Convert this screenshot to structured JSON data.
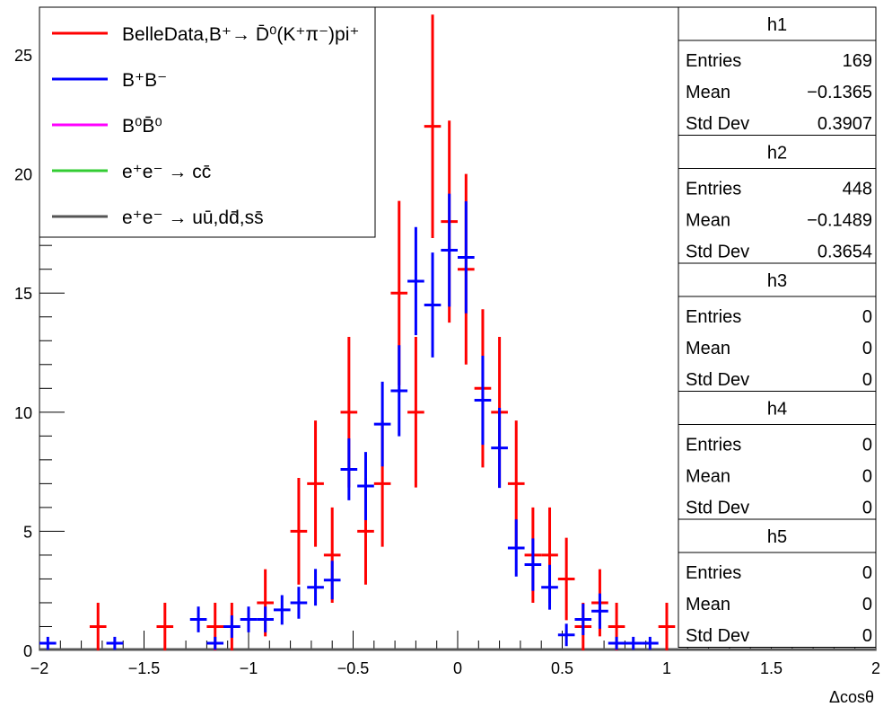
{
  "chart_data": {
    "type": "scatter",
    "xlabel": "Δcosθ",
    "ylabel": "",
    "xlim": [
      -2,
      2
    ],
    "ylim": [
      0,
      27
    ],
    "grid": false,
    "legend_placement": "top-left",
    "x_tick_labels": [
      "−2",
      "−1.5",
      "−1",
      "−0.5",
      "0",
      "0.5",
      "1",
      "1.5",
      "2"
    ],
    "x_ticks": [
      -2,
      -1.5,
      -1,
      -0.5,
      0,
      0.5,
      1,
      1.5,
      2
    ],
    "y_tick_labels": [
      "0",
      "5",
      "10",
      "15",
      "20",
      "25"
    ],
    "y_ticks": [
      0,
      5,
      10,
      15,
      20,
      25
    ],
    "bin_half_width": 0.04,
    "legend": [
      {
        "label": "BelleData,B⁺→ D̄⁰(K⁺π⁻)pi⁺",
        "color": "#ff0000"
      },
      {
        "label": "B⁺B⁻",
        "color": "#0000ff"
      },
      {
        "label": "B⁰B̄⁰",
        "color": "#ff00ff"
      },
      {
        "label": "e⁺e⁻ → cc̄",
        "color": "#33cc33"
      },
      {
        "label": "e⁺e⁻ → uū,dd̄,ss̄",
        "color": "#555555"
      }
    ],
    "series": [
      {
        "name": "BelleData,B⁺→ D̄⁰(K⁺π⁻)pi⁺",
        "color": "#ff0000",
        "points": [
          {
            "x": -1.72,
            "y": 1,
            "err": 1
          },
          {
            "x": -1.4,
            "y": 1,
            "err": 1
          },
          {
            "x": -1.16,
            "y": 1,
            "err": 1
          },
          {
            "x": -1.08,
            "y": 1,
            "err": 1
          },
          {
            "x": -0.92,
            "y": 2,
            "err": 1.41
          },
          {
            "x": -0.76,
            "y": 5,
            "err": 2.24
          },
          {
            "x": -0.68,
            "y": 7,
            "err": 2.65
          },
          {
            "x": -0.6,
            "y": 4,
            "err": 2
          },
          {
            "x": -0.52,
            "y": 10,
            "err": 3.16
          },
          {
            "x": -0.44,
            "y": 5,
            "err": 2.24
          },
          {
            "x": -0.36,
            "y": 7,
            "err": 2.65
          },
          {
            "x": -0.28,
            "y": 15,
            "err": 3.87
          },
          {
            "x": -0.2,
            "y": 10,
            "err": 3.16
          },
          {
            "x": -0.12,
            "y": 22,
            "err": 4.69
          },
          {
            "x": -0.04,
            "y": 18,
            "err": 4.24
          },
          {
            "x": 0.04,
            "y": 16,
            "err": 4
          },
          {
            "x": 0.12,
            "y": 11,
            "err": 3.32
          },
          {
            "x": 0.2,
            "y": 10,
            "err": 3.16
          },
          {
            "x": 0.28,
            "y": 7,
            "err": 2.65
          },
          {
            "x": 0.36,
            "y": 4,
            "err": 2
          },
          {
            "x": 0.44,
            "y": 4,
            "err": 2
          },
          {
            "x": 0.52,
            "y": 3,
            "err": 1.73
          },
          {
            "x": 0.6,
            "y": 1,
            "err": 1
          },
          {
            "x": 0.68,
            "y": 2,
            "err": 1.41
          },
          {
            "x": 0.76,
            "y": 1,
            "err": 1
          },
          {
            "x": 1.0,
            "y": 1,
            "err": 1
          }
        ]
      },
      {
        "name": "B⁺B⁻",
        "color": "#0000ff",
        "points": [
          {
            "x": -1.96,
            "y": 0.3,
            "err": 0.27
          },
          {
            "x": -1.64,
            "y": 0.3,
            "err": 0.27
          },
          {
            "x": -1.24,
            "y": 1.3,
            "err": 0.54
          },
          {
            "x": -1.16,
            "y": 0.3,
            "err": 0.27
          },
          {
            "x": -1.08,
            "y": 1.0,
            "err": 0.47
          },
          {
            "x": -1.0,
            "y": 1.3,
            "err": 0.54
          },
          {
            "x": -0.92,
            "y": 1.3,
            "err": 0.54
          },
          {
            "x": -0.84,
            "y": 1.7,
            "err": 0.62
          },
          {
            "x": -0.76,
            "y": 2.0,
            "err": 0.67
          },
          {
            "x": -0.68,
            "y": 2.65,
            "err": 0.77
          },
          {
            "x": -0.6,
            "y": 2.95,
            "err": 0.81
          },
          {
            "x": -0.52,
            "y": 7.6,
            "err": 1.3
          },
          {
            "x": -0.44,
            "y": 6.9,
            "err": 1.43
          },
          {
            "x": -0.36,
            "y": 9.5,
            "err": 1.78
          },
          {
            "x": -0.28,
            "y": 10.9,
            "err": 1.91
          },
          {
            "x": -0.2,
            "y": 15.5,
            "err": 2.27
          },
          {
            "x": -0.12,
            "y": 14.5,
            "err": 2.2
          },
          {
            "x": -0.04,
            "y": 16.8,
            "err": 2.37
          },
          {
            "x": 0.04,
            "y": 16.5,
            "err": 2.35
          },
          {
            "x": 0.12,
            "y": 10.5,
            "err": 1.87
          },
          {
            "x": 0.2,
            "y": 8.5,
            "err": 1.68
          },
          {
            "x": 0.28,
            "y": 4.3,
            "err": 1.2
          },
          {
            "x": 0.36,
            "y": 3.6,
            "err": 1.1
          },
          {
            "x": 0.44,
            "y": 2.65,
            "err": 0.94
          },
          {
            "x": 0.52,
            "y": 0.65,
            "err": 0.47
          },
          {
            "x": 0.6,
            "y": 1.3,
            "err": 0.66
          },
          {
            "x": 0.68,
            "y": 1.65,
            "err": 0.74
          },
          {
            "x": 0.76,
            "y": 0.3,
            "err": 0.27
          },
          {
            "x": 0.84,
            "y": 0.3,
            "err": 0.27
          },
          {
            "x": 0.92,
            "y": 0.3,
            "err": 0.27
          }
        ]
      }
    ],
    "stats": [
      {
        "title": "h1",
        "rows": [
          {
            "label": "Entries",
            "value": "169"
          },
          {
            "label": "Mean",
            "value": "−0.1365"
          },
          {
            "label": "Std Dev",
            "value": "0.3907"
          }
        ]
      },
      {
        "title": "h2",
        "rows": [
          {
            "label": "Entries",
            "value": "448"
          },
          {
            "label": "Mean",
            "value": "−0.1489"
          },
          {
            "label": "Std Dev",
            "value": "0.3654"
          }
        ]
      },
      {
        "title": "h3",
        "rows": [
          {
            "label": "Entries",
            "value": "0"
          },
          {
            "label": "Mean",
            "value": "0"
          },
          {
            "label": "Std Dev",
            "value": "0"
          }
        ]
      },
      {
        "title": "h4",
        "rows": [
          {
            "label": "Entries",
            "value": "0"
          },
          {
            "label": "Mean",
            "value": "0"
          },
          {
            "label": "Std Dev",
            "value": "0"
          }
        ]
      },
      {
        "title": "h5",
        "rows": [
          {
            "label": "Entries",
            "value": "0"
          },
          {
            "label": "Mean",
            "value": "0"
          },
          {
            "label": "Std Dev",
            "value": "0"
          }
        ]
      }
    ]
  }
}
